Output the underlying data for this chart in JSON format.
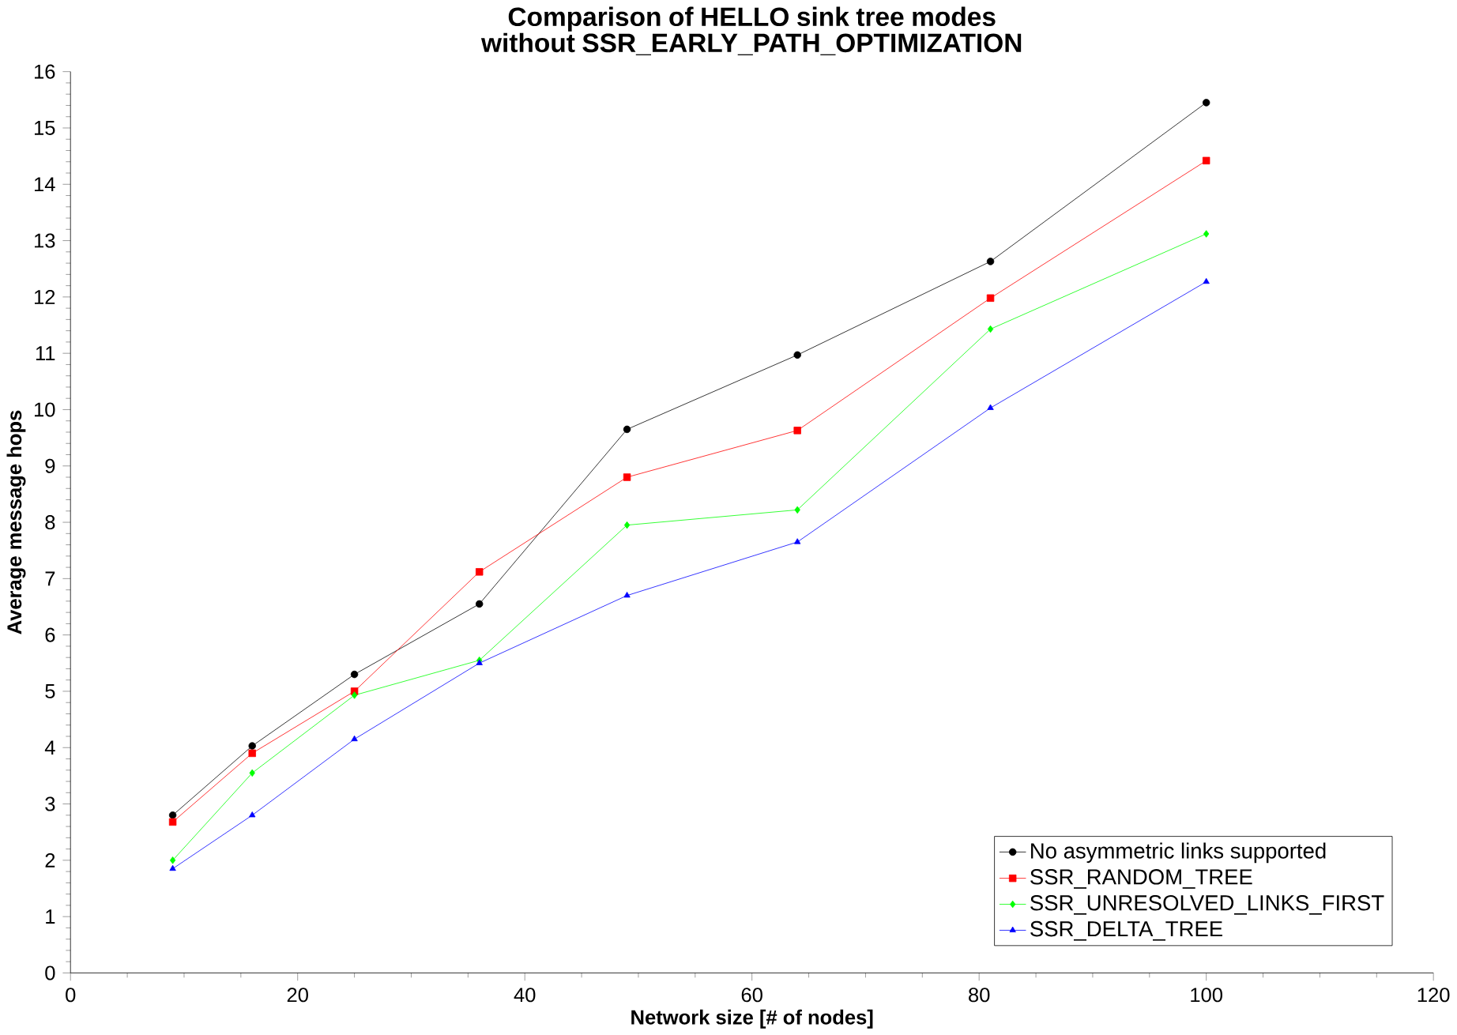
{
  "chart_data": {
    "type": "line",
    "title": "Comparison of HELLO sink tree modes without SSR_EARLY_PATH_OPTIMIZATION",
    "xlabel": "Network size [# of nodes]",
    "ylabel": "Average message hops",
    "x": [
      9,
      16,
      25,
      36,
      49,
      64,
      81,
      100
    ],
    "series": [
      {
        "name": "No asymmetric links supported",
        "color": "#000000",
        "marker": "circle",
        "values": [
          2.8,
          4.03,
          5.3,
          6.55,
          9.65,
          10.97,
          12.63,
          15.45
        ]
      },
      {
        "name": "SSR_RANDOM_TREE",
        "color": "#ff0000",
        "marker": "square",
        "values": [
          2.68,
          3.9,
          5.0,
          7.12,
          8.8,
          9.63,
          11.98,
          14.42
        ]
      },
      {
        "name": "SSR_UNRESOLVED_LINKS_FIRST",
        "color": "#00ff00",
        "marker": "diamond",
        "values": [
          2.0,
          3.55,
          4.93,
          5.55,
          7.95,
          8.22,
          11.43,
          13.12
        ]
      },
      {
        "name": "SSR_DELTA_TREE",
        "color": "#0000ff",
        "marker": "triangle",
        "values": [
          1.85,
          2.8,
          4.15,
          5.5,
          6.7,
          7.65,
          10.03,
          12.27
        ]
      }
    ],
    "xlim": [
      0,
      120
    ],
    "xticks": [
      0,
      20,
      40,
      60,
      80,
      100,
      120
    ],
    "ylim": [
      0,
      16
    ],
    "yticks": [
      0,
      1,
      2,
      3,
      4,
      5,
      6,
      7,
      8,
      9,
      10,
      11,
      12,
      13,
      14,
      15,
      16
    ],
    "grid": false,
    "legend": "bottom right",
    "line_style": "solid"
  }
}
